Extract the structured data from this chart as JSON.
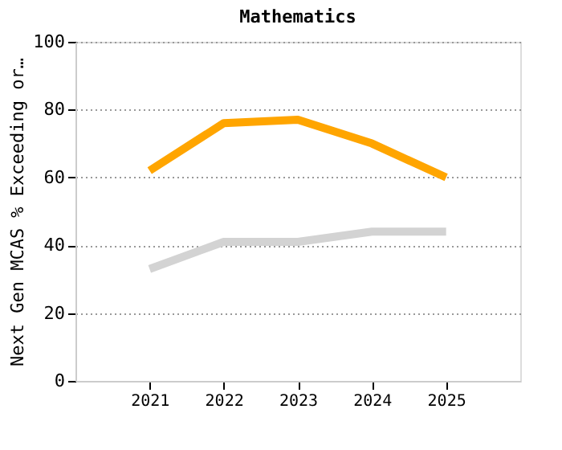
{
  "chart_data": {
    "type": "line",
    "title": "Mathematics",
    "ylabel": "Next Gen MCAS % Exceeding or…",
    "categories": [
      "2021",
      "2022",
      "2023",
      "2024",
      "2025"
    ],
    "series": [
      {
        "color": "#ffa500",
        "values": [
          62,
          76,
          77,
          70,
          60
        ]
      },
      {
        "color": "#d3d3d3",
        "values": [
          33,
          41,
          41,
          44,
          44
        ]
      }
    ],
    "ylim": [
      0,
      100
    ],
    "yticks": [
      0,
      20,
      40,
      60,
      80,
      100
    ],
    "grid": "y",
    "legend": false,
    "marker": "none",
    "line_style": "solid"
  }
}
